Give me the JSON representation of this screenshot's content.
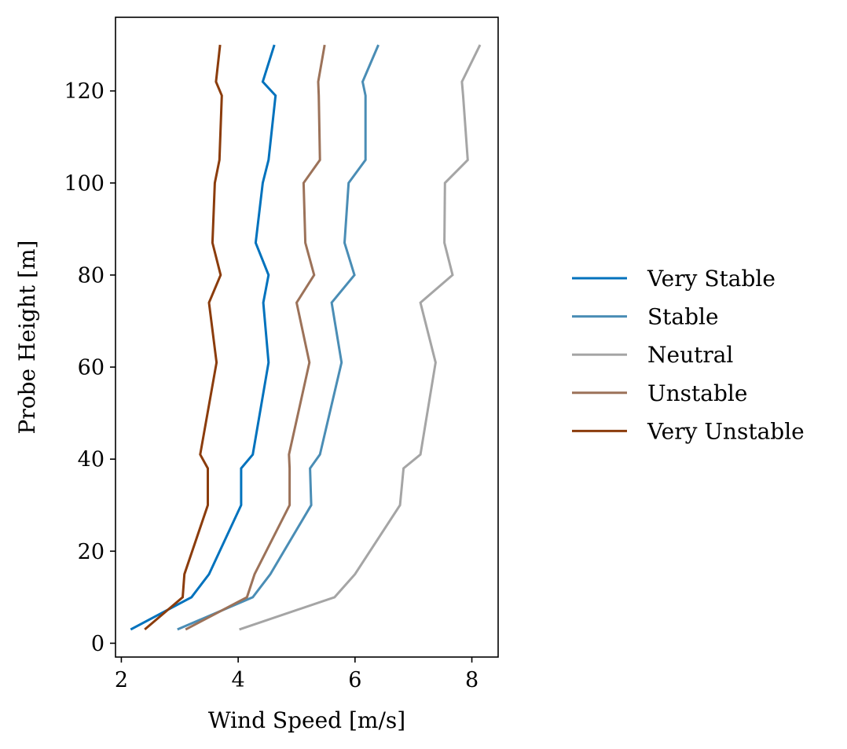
{
  "chart_data": {
    "type": "line",
    "title": "",
    "xlabel": "Wind Speed [m/s]",
    "ylabel": "Probe Height [m]",
    "xlim": [
      1.9,
      8.45
    ],
    "ylim": [
      -3,
      136
    ],
    "xticks": [
      2,
      4,
      6,
      8
    ],
    "yticks": [
      0,
      20,
      40,
      60,
      80,
      100,
      120
    ],
    "grid": false,
    "legend_position": "right-outside",
    "series": [
      {
        "name": "Very Stable",
        "color": "#0072BD",
        "points": [
          [
            2.16,
            3
          ],
          [
            3.2,
            10
          ],
          [
            3.5,
            15
          ],
          [
            4.05,
            30
          ],
          [
            4.05,
            38
          ],
          [
            4.25,
            41
          ],
          [
            4.52,
            61
          ],
          [
            4.43,
            74
          ],
          [
            4.52,
            80
          ],
          [
            4.3,
            87
          ],
          [
            4.42,
            100
          ],
          [
            4.52,
            105
          ],
          [
            4.64,
            119
          ],
          [
            4.42,
            122
          ],
          [
            4.62,
            130
          ]
        ]
      },
      {
        "name": "Stable",
        "color": "#4A8DB5",
        "points": [
          [
            2.96,
            3
          ],
          [
            4.25,
            10
          ],
          [
            4.55,
            15
          ],
          [
            5.25,
            30
          ],
          [
            5.23,
            38
          ],
          [
            5.4,
            41
          ],
          [
            5.77,
            61
          ],
          [
            5.6,
            74
          ],
          [
            5.99,
            80
          ],
          [
            5.82,
            87
          ],
          [
            5.89,
            100
          ],
          [
            6.18,
            105
          ],
          [
            6.18,
            119
          ],
          [
            6.13,
            122
          ],
          [
            6.4,
            130
          ]
        ]
      },
      {
        "name": "Neutral",
        "color": "#A5A5A5",
        "points": [
          [
            4.02,
            3
          ],
          [
            5.65,
            10
          ],
          [
            6.0,
            15
          ],
          [
            6.77,
            30
          ],
          [
            6.83,
            38
          ],
          [
            7.12,
            41
          ],
          [
            7.38,
            61
          ],
          [
            7.12,
            74
          ],
          [
            7.67,
            80
          ],
          [
            7.53,
            87
          ],
          [
            7.54,
            100
          ],
          [
            7.93,
            105
          ],
          [
            7.85,
            119
          ],
          [
            7.83,
            122
          ],
          [
            8.14,
            130
          ]
        ]
      },
      {
        "name": "Unstable",
        "color": "#9C7259",
        "points": [
          [
            3.1,
            3
          ],
          [
            4.15,
            10
          ],
          [
            4.28,
            15
          ],
          [
            4.88,
            30
          ],
          [
            4.88,
            38
          ],
          [
            4.87,
            41
          ],
          [
            5.22,
            61
          ],
          [
            5.0,
            74
          ],
          [
            5.3,
            80
          ],
          [
            5.15,
            87
          ],
          [
            5.12,
            100
          ],
          [
            5.4,
            105
          ],
          [
            5.38,
            119
          ],
          [
            5.37,
            122
          ],
          [
            5.48,
            130
          ]
        ]
      },
      {
        "name": "Very Unstable",
        "color": "#8B3C0C",
        "points": [
          [
            2.4,
            3
          ],
          [
            3.05,
            10
          ],
          [
            3.08,
            15
          ],
          [
            3.48,
            30
          ],
          [
            3.48,
            38
          ],
          [
            3.35,
            41
          ],
          [
            3.63,
            61
          ],
          [
            3.5,
            74
          ],
          [
            3.7,
            80
          ],
          [
            3.56,
            87
          ],
          [
            3.6,
            100
          ],
          [
            3.68,
            105
          ],
          [
            3.72,
            119
          ],
          [
            3.62,
            122
          ],
          [
            3.69,
            130
          ]
        ]
      }
    ]
  }
}
